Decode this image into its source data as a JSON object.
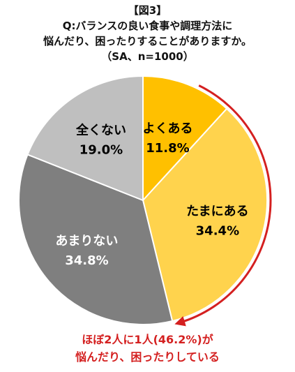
{
  "header": {
    "fig_label": "【図3】",
    "question_line1": "Q:バランスの良い食事や調理方法に",
    "question_line2": "悩んだり、困ったりすることがありますか。",
    "sample_note": "（SA、n=1000）"
  },
  "chart_data": {
    "type": "pie",
    "title": "Q:バランスの良い食事や調理方法に悩んだり、困ったりすることがありますか。",
    "unit": "%",
    "start_angle_deg": 0,
    "direction": "clockwise",
    "slices": [
      {
        "label": "よくある",
        "value": 11.8,
        "value_label": "11.8%",
        "color": "#ffc000"
      },
      {
        "label": "たまにある",
        "value": 34.4,
        "value_label": "34.4%",
        "color": "#ffd34d"
      },
      {
        "label": "あまりない",
        "value": 34.8,
        "value_label": "34.8%",
        "color": "#7f7f7f"
      },
      {
        "label": "全くない",
        "value": 19.0,
        "value_label": "19.0%",
        "color": "#bfbfbf"
      }
    ],
    "annotation": {
      "arc_color": "#d42020",
      "spans_slices": [
        "よくある",
        "たまにある"
      ],
      "total": 46.2
    }
  },
  "annotation_text": {
    "line1": "ほぼ2人に1人(46.2%)が",
    "line2": "悩んだり、困ったりしている"
  }
}
